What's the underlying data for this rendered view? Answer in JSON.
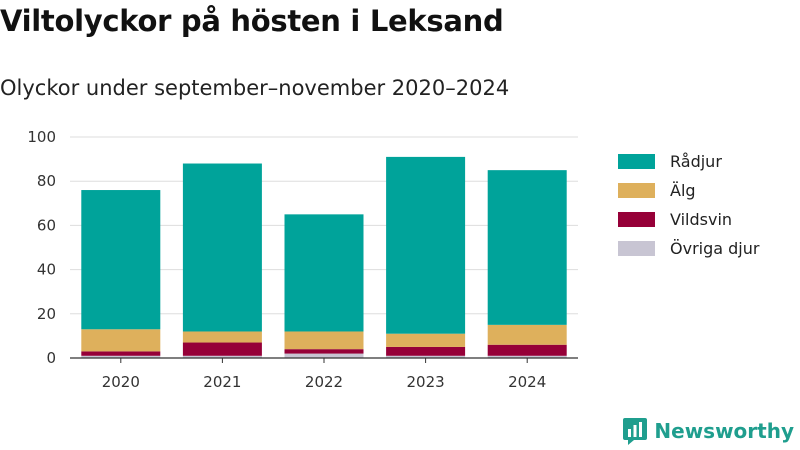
{
  "title": "Viltolyckor på hösten i Leksand",
  "subtitle": "Olyckor under september–november 2020–2024",
  "brand": "Newsworthy",
  "chart_data": {
    "type": "bar",
    "stacked": true,
    "categories": [
      "2020",
      "2021",
      "2022",
      "2023",
      "2024"
    ],
    "series": [
      {
        "name": "Övriga djur",
        "color": "#c8c5d3",
        "values": [
          1,
          1,
          2,
          1,
          1
        ]
      },
      {
        "name": "Vildsvin",
        "color": "#960038",
        "values": [
          2,
          6,
          2,
          4,
          5
        ]
      },
      {
        "name": "Älg",
        "color": "#deb05c",
        "values": [
          10,
          5,
          8,
          6,
          9
        ]
      },
      {
        "name": "Rådjur",
        "color": "#00a39a",
        "values": [
          63,
          76,
          53,
          80,
          70
        ]
      }
    ],
    "legend_order": [
      "Rådjur",
      "Älg",
      "Vildsvin",
      "Övriga djur"
    ],
    "y_ticks": [
      "0",
      "20",
      "40",
      "60",
      "80",
      "100"
    ],
    "ylim": [
      0,
      100
    ],
    "grid": true,
    "legend_position": "right",
    "xlabel": "",
    "ylabel": ""
  }
}
